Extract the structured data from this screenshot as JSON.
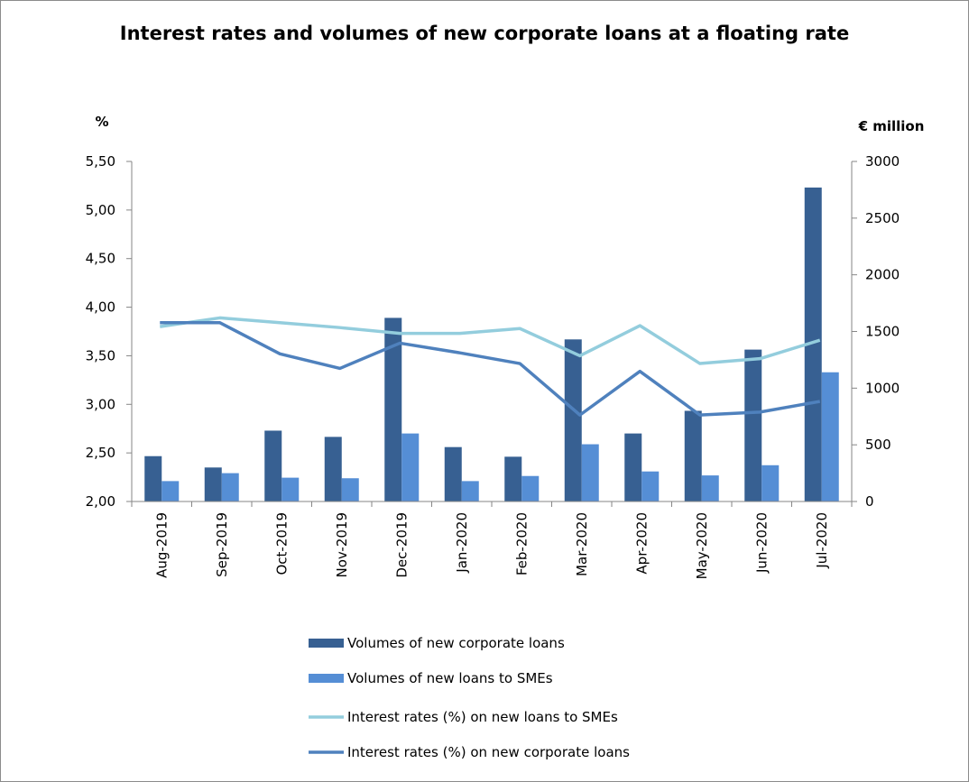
{
  "chart_data": {
    "type": "bar+line",
    "title": "Interest rates and volumes of new corporate loans at a floating rate",
    "left_axis_unit": "%",
    "right_axis_unit": "€ million",
    "categories": [
      "Aug-2019",
      "Sep-2019",
      "Oct-2019",
      "Nov-2019",
      "Dec-2019",
      "Jan-2020",
      "Feb-2020",
      "Mar-2020",
      "Apr-2020",
      "May-2020",
      "Jun-2020",
      "Jul-2020"
    ],
    "y_left": {
      "min": 2.0,
      "max": 5.5,
      "step": 0.5,
      "tick_labels": [
        "2,00",
        "2,50",
        "3,00",
        "3,50",
        "4,00",
        "4,50",
        "5,00",
        "5,50"
      ]
    },
    "y_right": {
      "min": 0,
      "max": 3000,
      "step": 500,
      "tick_labels": [
        "0",
        "500",
        "1000",
        "1500",
        "2000",
        "2500",
        "3000"
      ]
    },
    "grid": false,
    "legend_position": "bottom",
    "series": [
      {
        "name": "Volumes of new corporate loans",
        "kind": "bar",
        "axis": "right",
        "color": "#376092",
        "values": [
          400,
          300,
          625,
          570,
          1620,
          480,
          395,
          1430,
          600,
          800,
          1340,
          2770
        ]
      },
      {
        "name": "Volumes of new loans to SMEs",
        "kind": "bar",
        "axis": "right",
        "color": "#558ed5",
        "values": [
          180,
          250,
          210,
          205,
          600,
          180,
          225,
          505,
          265,
          230,
          320,
          1140
        ]
      },
      {
        "name": "Interest rates (%) on new loans to SMEs",
        "kind": "line",
        "axis": "left",
        "color": "#93cddd",
        "values": [
          3.8,
          3.89,
          3.84,
          3.79,
          3.73,
          3.73,
          3.78,
          3.5,
          3.81,
          3.42,
          3.47,
          3.66
        ]
      },
      {
        "name": "Interest rates (%) on new corporate loans",
        "kind": "line",
        "axis": "left",
        "color": "#4f81bd",
        "values": [
          3.84,
          3.84,
          3.52,
          3.37,
          3.63,
          3.53,
          3.42,
          2.89,
          3.34,
          2.89,
          2.92,
          3.03
        ]
      }
    ]
  }
}
